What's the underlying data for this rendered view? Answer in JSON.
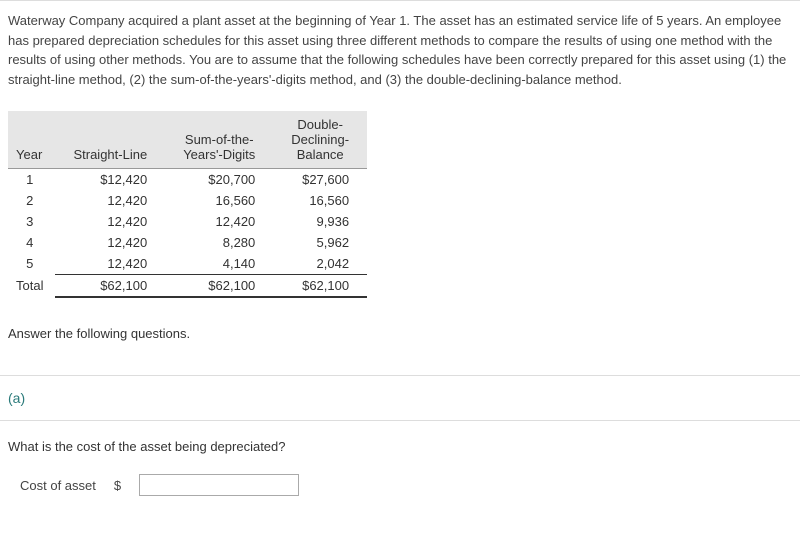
{
  "problem": {
    "text": "Waterway Company acquired a plant asset at the beginning of Year 1. The asset has an estimated service life of 5 years. An employee has prepared depreciation schedules for this asset using three different methods to compare the results of using one method with the results of using other methods. You are to assume that the following schedules have been correctly prepared for this asset using (1) the straight-line method, (2) the sum-of-the-years'-digits method, and (3) the double-declining-balance method."
  },
  "table": {
    "headers": {
      "year": "Year",
      "straight_line": "Straight-Line",
      "syd_line1": "Sum-of-the-",
      "syd_line2": "Years'-Digits",
      "ddb_line1": "Double-",
      "ddb_line2": "Declining-",
      "ddb_line3": "Balance"
    },
    "rows": [
      {
        "year": "1",
        "sl": "$12,420",
        "syd": "$20,700",
        "ddb": "$27,600"
      },
      {
        "year": "2",
        "sl": "12,420",
        "syd": "16,560",
        "ddb": "16,560"
      },
      {
        "year": "3",
        "sl": "12,420",
        "syd": "12,420",
        "ddb": "9,936"
      },
      {
        "year": "4",
        "sl": "12,420",
        "syd": "8,280",
        "ddb": "5,962"
      },
      {
        "year": "5",
        "sl": "12,420",
        "syd": "4,140",
        "ddb": "2,042"
      }
    ],
    "total": {
      "year": "Total",
      "sl": "$62,100",
      "syd": "$62,100",
      "ddb": "$62,100"
    }
  },
  "prompts": {
    "answer_following": "Answer the following questions.",
    "part_label": "(a)",
    "question_text": "What is the cost of the asset being depreciated?",
    "cost_label": "Cost of asset",
    "dollar": "$"
  },
  "input": {
    "cost_value": ""
  },
  "colors": {
    "heading_teal": "#2a7a7a",
    "header_bg": "#e6e6e6",
    "border_light": "#dddddd",
    "text_main": "#444444"
  }
}
